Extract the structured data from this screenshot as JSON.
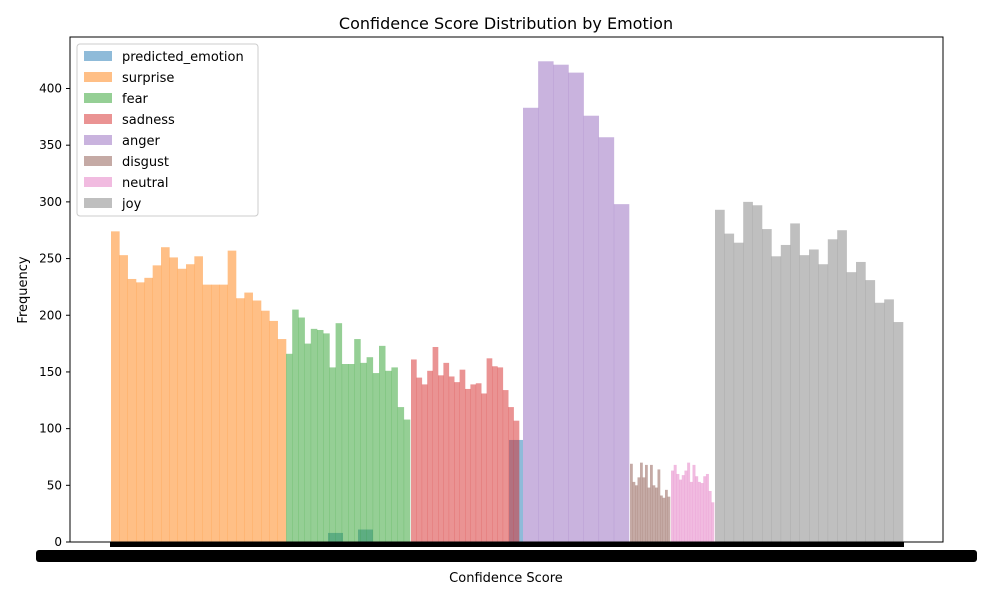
{
  "chart_data": {
    "type": "bar",
    "title": "Confidence Score Distribution by Emotion",
    "xlabel": "Confidence Score",
    "ylabel": "Frequency",
    "ylim": [
      0,
      440
    ],
    "yticks": [
      0,
      50,
      100,
      150,
      200,
      250,
      300,
      350,
      400
    ],
    "grid": false,
    "legend_position": "top-left",
    "series": [
      {
        "name": "predicted_emotion",
        "color": "#1f77b4",
        "values": [
          8,
          11,
          90
        ]
      },
      {
        "name": "surprise",
        "color": "#ff7f0e",
        "values": [
          274,
          253,
          232,
          229,
          233,
          244,
          260,
          251,
          241,
          245,
          252,
          227,
          227,
          227,
          257,
          215,
          220,
          213,
          204,
          195,
          179
        ]
      },
      {
        "name": "fear",
        "color": "#2ca02c",
        "values": [
          166,
          205,
          198,
          175,
          188,
          187,
          184,
          154,
          193,
          157,
          157,
          179,
          158,
          163,
          149,
          173,
          151,
          154,
          119,
          108
        ]
      },
      {
        "name": "sadness",
        "color": "#d62728",
        "values": [
          161,
          145,
          139,
          151,
          172,
          147,
          158,
          146,
          141,
          152,
          135,
          139,
          140,
          131,
          162,
          155,
          154,
          134,
          119,
          107
        ]
      },
      {
        "name": "anger",
        "color": "#9467bd",
        "values": [
          383,
          424,
          421,
          414,
          376,
          357,
          298
        ]
      },
      {
        "name": "disgust",
        "color": "#8c564b",
        "values": [
          69,
          53,
          50,
          57,
          70,
          57,
          68,
          48,
          68,
          50,
          48,
          64,
          41,
          39,
          46,
          40
        ]
      },
      {
        "name": "neutral",
        "color": "#e377c2",
        "values": [
          63,
          68,
          60,
          55,
          59,
          63,
          70,
          53,
          68,
          58,
          53,
          52,
          58,
          60,
          45,
          35
        ]
      },
      {
        "name": "joy",
        "color": "#7f7f7f",
        "values": [
          293,
          272,
          264,
          300,
          297,
          276,
          252,
          262,
          281,
          253,
          258,
          245,
          267,
          275,
          238,
          247,
          231,
          211,
          214,
          194
        ]
      }
    ]
  }
}
